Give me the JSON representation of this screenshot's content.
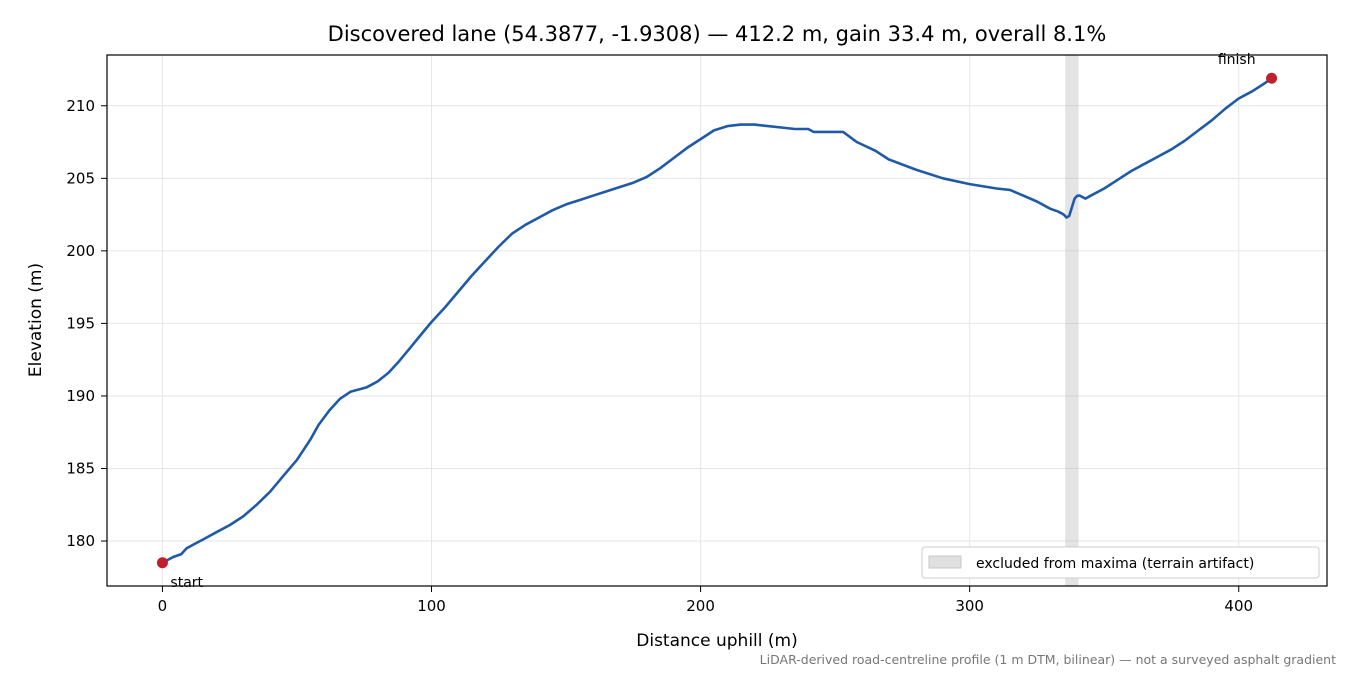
{
  "colors": {
    "line": "#1f5aa8",
    "marker": "#c0202a",
    "band": "#bbbbbb",
    "grid": "#e6e6e6",
    "footnote": "#777777"
  },
  "chart_data": {
    "type": "line",
    "title": "Discovered lane (54.3877, -1.9308) — 412.2 m, gain 33.4 m, overall 8.1%",
    "xlabel": "Distance uphill (m)",
    "ylabel": "Elevation (m)",
    "xlim": [
      -20.6,
      432.8
    ],
    "ylim": [
      176.9,
      213.5
    ],
    "xticks": [
      0,
      100,
      200,
      300,
      400
    ],
    "yticks": [
      180,
      185,
      190,
      195,
      200,
      205,
      210
    ],
    "grid": true,
    "legend_position": "lower-right",
    "series": [
      {
        "x": [
          0,
          2,
          4,
          7,
          9,
          12,
          15,
          20,
          25,
          30,
          35,
          40,
          45,
          50,
          55,
          58,
          62,
          66,
          70,
          74,
          76,
          78,
          80,
          84,
          88,
          92,
          96,
          100,
          105,
          110,
          115,
          120,
          125,
          130,
          135,
          140,
          145,
          150,
          155,
          160,
          165,
          170,
          175,
          180,
          185,
          190,
          195,
          200,
          205,
          210,
          215,
          220,
          225,
          230,
          235,
          240,
          242,
          246,
          250,
          253,
          258,
          265,
          270,
          280,
          290,
          300,
          310,
          315,
          320,
          325,
          330,
          333,
          335,
          336,
          337,
          338,
          339,
          340,
          341,
          342,
          343,
          345,
          350,
          355,
          360,
          365,
          370,
          375,
          380,
          385,
          390,
          395,
          400,
          405,
          410,
          412.2
        ],
        "y": [
          178.5,
          178.7,
          178.9,
          179.1,
          179.5,
          179.8,
          180.1,
          180.6,
          181.1,
          181.7,
          182.5,
          183.4,
          184.5,
          185.6,
          187.0,
          188.0,
          189.0,
          189.8,
          190.3,
          190.5,
          190.6,
          190.8,
          191.0,
          191.6,
          192.4,
          193.3,
          194.2,
          195.1,
          196.1,
          197.2,
          198.3,
          199.3,
          200.3,
          201.2,
          201.8,
          202.3,
          202.8,
          203.2,
          203.5,
          203.8,
          204.1,
          204.4,
          204.7,
          205.1,
          205.7,
          206.4,
          207.1,
          207.7,
          208.3,
          208.6,
          208.7,
          208.7,
          208.6,
          208.5,
          208.4,
          208.4,
          208.2,
          208.2,
          208.2,
          208.2,
          207.5,
          206.9,
          206.3,
          205.6,
          205.0,
          204.6,
          204.3,
          204.2,
          203.8,
          203.4,
          202.9,
          202.7,
          202.5,
          202.3,
          202.4,
          203.0,
          203.6,
          203.8,
          203.8,
          203.7,
          203.6,
          203.8,
          204.3,
          204.9,
          205.5,
          206.0,
          206.5,
          207.0,
          207.6,
          208.3,
          209.0,
          209.8,
          210.5,
          211.0,
          211.6,
          211.9
        ]
      }
    ],
    "excluded_band": {
      "x0": 335.5,
      "x1": 340.5
    },
    "markers": [
      {
        "x": 0,
        "y": 178.5,
        "label": "start"
      },
      {
        "x": 412.2,
        "y": 211.9,
        "label": "finish"
      }
    ],
    "legend": {
      "band_label": "excluded from maxima (terrain artifact)"
    },
    "footnote": "LiDAR-derived road-centreline profile (1 m DTM, bilinear) — not a surveyed asphalt gradient"
  }
}
